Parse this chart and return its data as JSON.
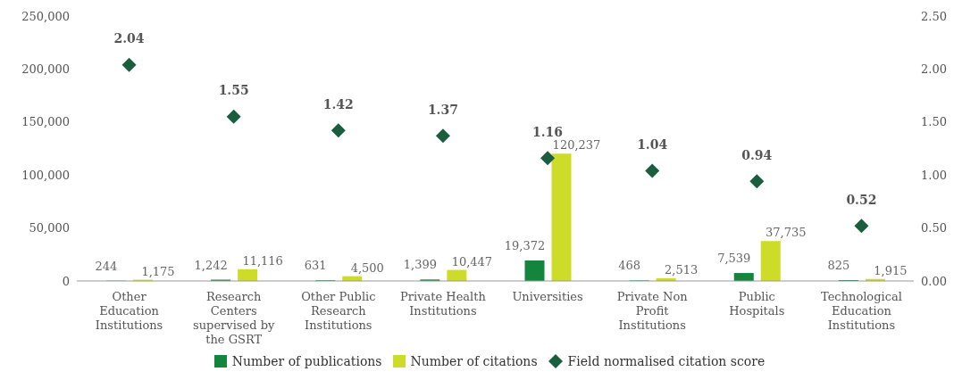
{
  "chart_data": {
    "type": "bar",
    "categories": [
      "Other Education Institutions",
      "Research Centers supervised by the GSRT",
      "Other Public Research Institutions",
      "Private Health Institutions",
      "Universities",
      "Private Non Profit Institutions",
      "Public Hospitals",
      "Technological Education Institutions"
    ],
    "series": [
      {
        "name": "Number of publications",
        "color": "#13853d",
        "values": [
          244,
          1242,
          631,
          1399,
          19372,
          468,
          7539,
          825
        ],
        "value_labels": [
          "244",
          "1,242",
          "631",
          "1,399",
          "19,372",
          "468",
          "7,539",
          "825"
        ]
      },
      {
        "name": "Number of citations",
        "color": "#cddc29",
        "values": [
          1175,
          11116,
          4500,
          10447,
          120237,
          2513,
          37735,
          1915
        ],
        "value_labels": [
          "1,175",
          "11,116",
          "4,500",
          "10,447",
          "120,237",
          "2,513",
          "37,735",
          "1,915"
        ]
      },
      {
        "name": "Field normalised citation score",
        "type": "scatter",
        "axis": "y2",
        "color": "#1b5e3f",
        "values": [
          2.04,
          1.55,
          1.42,
          1.37,
          1.16,
          1.04,
          0.94,
          0.52
        ],
        "value_labels": [
          "2.04",
          "1.55",
          "1.42",
          "1.37",
          "1.16",
          "1.04",
          "0.94",
          "0.52"
        ]
      }
    ],
    "ylim": [
      0,
      250000
    ],
    "yticks": [
      {
        "value": 0,
        "label": "0"
      },
      {
        "value": 50000,
        "label": "50,000"
      },
      {
        "value": 100000,
        "label": "100,000"
      },
      {
        "value": 150000,
        "label": "150,000"
      },
      {
        "value": 200000,
        "label": "200,000"
      },
      {
        "value": 250000,
        "label": "250,000"
      }
    ],
    "y2lim": [
      0,
      2.5
    ],
    "y2ticks": [
      {
        "value": 0,
        "label": "0.00"
      },
      {
        "value": 0.5,
        "label": "0.50"
      },
      {
        "value": 1,
        "label": "1.00"
      },
      {
        "value": 1.5,
        "label": "1.50"
      },
      {
        "value": 2,
        "label": "2.00"
      },
      {
        "value": 2.5,
        "label": "2.50"
      }
    ],
    "legend": "bottom",
    "marker": "diamond"
  }
}
